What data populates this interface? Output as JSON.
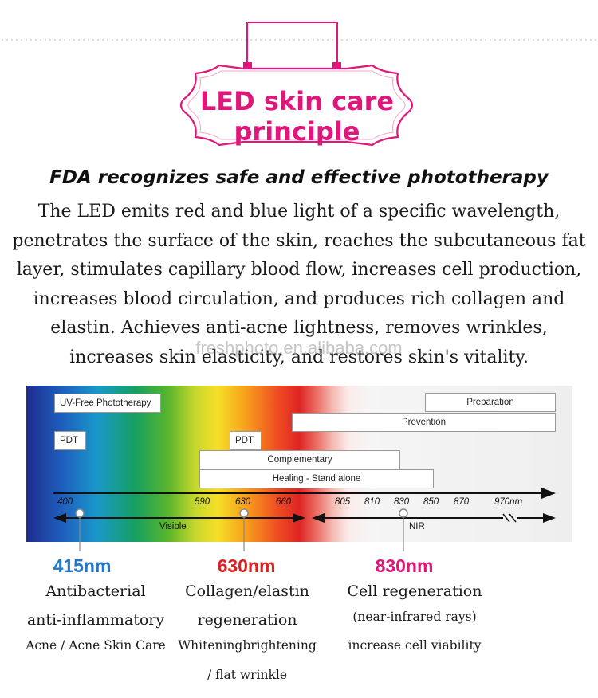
{
  "header": {
    "title_line1": "LED skin care",
    "title_line2": "principle",
    "accent_color": "#e0177a"
  },
  "subtitle": "FDA recognizes safe and effective phototherapy",
  "description": "The LED emits red and blue light of a specific wavelength, penetrates the surface of the skin, reaches the subcutaneous fat layer, stimulates capillary blood flow, increases cell production, increases blood circulation, and produces rich collagen and elastin. Achieves anti-acne lightness, removes wrinkles, increases skin elasticity, and restores skin's vitality.",
  "watermark": "freshphoto.en.alibaba.com",
  "spectrum": {
    "boxes": {
      "uv_free": "UV-Free Phototherapy",
      "pdt_1": "PDT",
      "pdt_2": "PDT",
      "preparation": "Preparation",
      "prevention": "Prevention",
      "complementary": "Complementary",
      "healing": "Healing - Stand alone"
    },
    "ticks": [
      "400",
      "590",
      "630",
      "660",
      "805",
      "810",
      "830",
      "850",
      "870",
      "970nm"
    ],
    "visible_label": "Visible",
    "nir_label": "NIR"
  },
  "wavelengths": [
    {
      "label": "415nm",
      "color": "#1f78c8",
      "line1": "Antibacterial",
      "line2": "anti-inflammatory",
      "line3": "Acne / Acne Skin Care",
      "line4": ""
    },
    {
      "label": "630nm",
      "color": "#e02020",
      "line1": "Collagen/elastin",
      "line2": "regeneration",
      "line3": "Whiteningbrightening",
      "line4": "/ flat wrinkle"
    },
    {
      "label": "830nm",
      "color": "#e0177a",
      "line1": "Cell regeneration",
      "line2": "(near-infrared rays)",
      "line3": "increase cell viability",
      "line4": ""
    }
  ]
}
